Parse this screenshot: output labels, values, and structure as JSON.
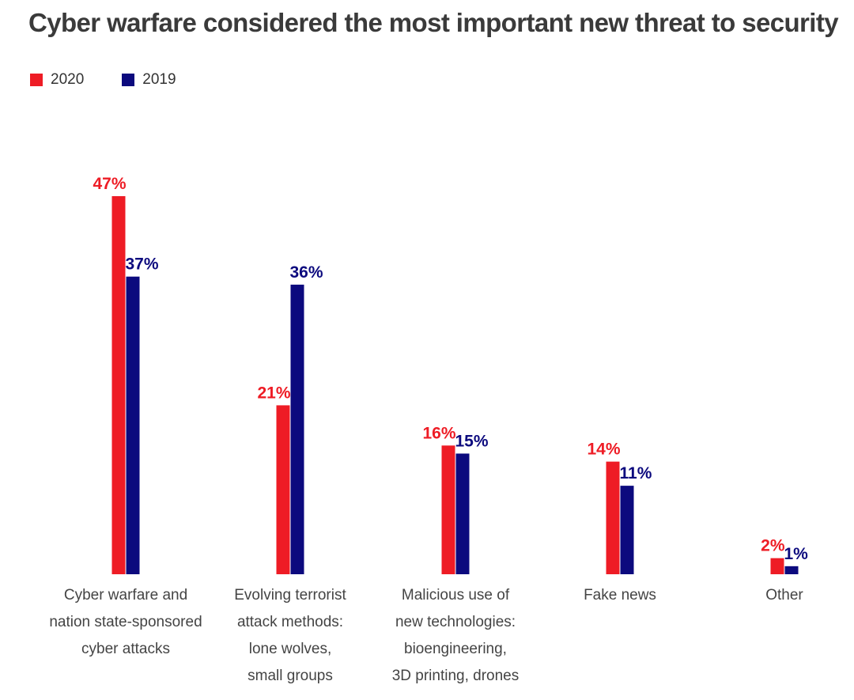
{
  "chart_data": {
    "type": "bar",
    "title": "Cyber warfare considered the most important new threat to security",
    "categories": [
      [
        "Cyber warfare and",
        "nation state-sponsored",
        "cyber attacks"
      ],
      [
        "Evolving terrorist",
        "attack methods:",
        "lone wolves,",
        "small groups"
      ],
      [
        "Malicious use of",
        "new technologies:",
        "bioengineering,",
        "3D printing, drones"
      ],
      [
        "Fake news"
      ],
      [
        "Other"
      ]
    ],
    "series": [
      {
        "name": "2020",
        "color": "#ee1c25",
        "values": [
          47,
          21,
          16,
          14,
          2
        ],
        "labels": [
          "47%",
          "21%",
          "16%",
          "14%",
          "2%"
        ]
      },
      {
        "name": "2019",
        "color": "#0c0a7e",
        "values": [
          37,
          36,
          15,
          11,
          1
        ],
        "labels": [
          "37%",
          "36%",
          "15%",
          "11%",
          "1%"
        ]
      }
    ],
    "xlabel": "",
    "ylabel": "",
    "ylim": [
      0,
      47
    ],
    "grid": false,
    "legend": "top-left"
  }
}
